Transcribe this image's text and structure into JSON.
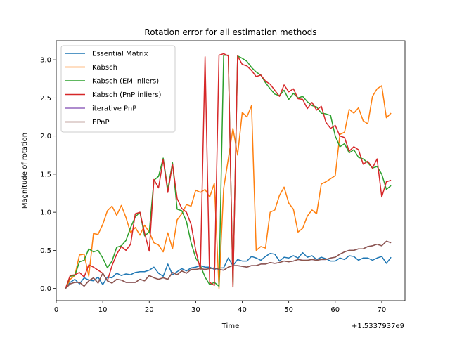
{
  "chart_data": {
    "type": "line",
    "title": "Rotation error for all estimation methods",
    "xlabel": "Time",
    "ylabel": "Magnitude of rotation",
    "x_offset_label": "+1.5337937e9",
    "xlim": [
      0,
      75
    ],
    "ylim": [
      -0.16,
      3.25
    ],
    "xticks": [
      0,
      10,
      20,
      30,
      40,
      50,
      60,
      70
    ],
    "yticks": [
      0.0,
      0.5,
      1.0,
      1.5,
      2.0,
      2.5,
      3.0
    ],
    "xtick_labels": [
      "0",
      "10",
      "20",
      "30",
      "40",
      "50",
      "60",
      "70"
    ],
    "ytick_labels": [
      "0.0",
      "0.5",
      "1.0",
      "1.5",
      "2.0",
      "2.5",
      "3.0"
    ],
    "grid": false,
    "legend_position": "top-left",
    "x": [
      2,
      3,
      4,
      5,
      6,
      7,
      8,
      9,
      10,
      11,
      12,
      13,
      14,
      15,
      16,
      17,
      18,
      19,
      20,
      21,
      22,
      23,
      24,
      25,
      26,
      27,
      28,
      29,
      30,
      31,
      32,
      33,
      34,
      35,
      36,
      37,
      38,
      39,
      40,
      41,
      42,
      43,
      44,
      45,
      46,
      47,
      48,
      49,
      50,
      51,
      52,
      53,
      54,
      55,
      56,
      57,
      58,
      59,
      60,
      61,
      62,
      63,
      64,
      65,
      66,
      67,
      68,
      69,
      70,
      71,
      72
    ],
    "series": [
      {
        "name": "Essential Matrix",
        "color": "#1f77b4",
        "values": [
          0.0,
          0.08,
          0.12,
          0.06,
          0.14,
          0.11,
          0.1,
          0.15,
          0.05,
          0.15,
          0.14,
          0.2,
          0.17,
          0.19,
          0.18,
          0.21,
          0.22,
          0.22,
          0.24,
          0.28,
          0.2,
          0.16,
          0.32,
          0.18,
          0.22,
          0.26,
          0.23,
          0.27,
          0.28,
          0.3,
          0.28,
          0.28,
          0.25,
          0.27,
          0.27,
          0.4,
          0.3,
          0.38,
          0.36,
          0.36,
          0.42,
          0.4,
          0.37,
          0.42,
          0.46,
          0.45,
          0.36,
          0.41,
          0.4,
          0.43,
          0.4,
          0.47,
          0.41,
          0.43,
          0.38,
          0.41,
          0.39,
          0.36,
          0.36,
          0.4,
          0.38,
          0.43,
          0.42,
          0.37,
          0.4,
          0.4,
          0.37,
          0.4,
          0.42,
          0.33,
          0.41
        ]
      },
      {
        "name": "Kabsch",
        "color": "#ff7f0e",
        "values": [
          0.0,
          0.12,
          0.17,
          0.44,
          0.45,
          0.16,
          0.72,
          0.71,
          0.84,
          1.02,
          1.08,
          0.96,
          1.09,
          0.93,
          0.73,
          0.8,
          0.7,
          0.83,
          0.74,
          0.6,
          0.57,
          0.48,
          0.73,
          0.52,
          0.9,
          0.98,
          1.1,
          1.08,
          1.29,
          1.26,
          1.3,
          1.2,
          1.38,
          0.0,
          1.31,
          1.7,
          2.1,
          1.75,
          2.31,
          2.25,
          2.4,
          0.5,
          0.55,
          0.53,
          1.0,
          1.03,
          1.22,
          1.33,
          1.12,
          1.04,
          0.74,
          0.79,
          0.95,
          1.03,
          0.98,
          1.37,
          1.4,
          1.44,
          1.48,
          2.02,
          2.05,
          2.35,
          2.3,
          2.37,
          2.2,
          2.16,
          2.52,
          2.62,
          2.66,
          2.24,
          2.3
        ]
      },
      {
        "name": "Kabsch (EM inliers)",
        "color": "#2ca02c",
        "values": [
          0.0,
          0.16,
          0.17,
          0.35,
          0.37,
          0.52,
          0.48,
          0.5,
          0.4,
          0.27,
          0.36,
          0.54,
          0.56,
          0.63,
          0.8,
          0.94,
          1.0,
          0.69,
          0.74,
          1.42,
          1.47,
          1.71,
          1.3,
          1.65,
          1.04,
          1.02,
          0.88,
          0.6,
          0.4,
          0.3,
          0.15,
          0.05,
          0.08,
          0.03,
          3.06,
          3.06,
          0.02,
          3.05,
          3.02,
          2.98,
          2.9,
          2.84,
          2.8,
          2.7,
          2.62,
          2.55,
          2.53,
          2.6,
          2.48,
          2.56,
          2.5,
          2.52,
          2.45,
          2.4,
          2.38,
          2.3,
          2.29,
          2.27,
          2.0,
          1.86,
          1.9,
          1.78,
          1.82,
          1.72,
          1.7,
          1.65,
          1.58,
          1.6,
          1.5,
          1.3,
          1.35
        ]
      },
      {
        "name": "Kabsch (PnP inliers)",
        "color": "#d62728",
        "values": [
          0.0,
          0.17,
          0.18,
          0.21,
          0.15,
          0.31,
          0.28,
          0.24,
          0.2,
          0.1,
          0.3,
          0.45,
          0.55,
          0.5,
          0.58,
          0.98,
          1.0,
          0.73,
          0.49,
          1.43,
          1.32,
          1.69,
          1.26,
          1.63,
          1.18,
          1.05,
          1.0,
          0.84,
          0.5,
          0.25,
          3.04,
          0.08,
          0.04,
          3.06,
          3.08,
          3.05,
          0.02,
          3.05,
          2.94,
          2.92,
          2.86,
          2.78,
          2.8,
          2.72,
          2.68,
          2.6,
          2.52,
          2.67,
          2.58,
          2.62,
          2.49,
          2.48,
          2.36,
          2.44,
          2.34,
          2.39,
          2.18,
          2.1,
          2.14,
          2.0,
          1.98,
          1.8,
          1.86,
          1.82,
          1.63,
          1.67,
          1.58,
          1.7,
          1.2,
          1.4,
          1.42
        ]
      },
      {
        "name": "iterative PnP",
        "color": "#9467bd",
        "values": [
          0.0,
          0.06,
          0.08,
          0.08,
          0.03,
          0.1,
          0.14,
          0.07,
          0.2,
          0.1,
          0.07,
          0.12,
          0.11,
          0.08,
          0.08,
          0.08,
          0.12,
          0.1,
          0.17,
          0.14,
          0.12,
          0.14,
          0.12,
          0.21,
          0.18,
          0.23,
          0.2,
          0.25,
          0.25,
          0.26,
          0.25,
          0.26,
          0.27,
          0.25,
          0.24,
          0.28,
          0.3,
          0.3,
          0.29,
          0.28,
          0.3,
          0.3,
          0.32,
          0.32,
          0.34,
          0.33,
          0.34,
          0.36,
          0.35,
          0.36,
          0.38,
          0.37,
          0.37,
          0.38,
          0.37,
          0.38,
          0.38,
          0.4,
          0.41,
          0.45,
          0.48,
          0.5,
          0.5,
          0.52,
          0.52,
          0.55,
          0.56,
          0.58,
          0.56,
          0.62,
          0.6
        ]
      },
      {
        "name": "EPnP",
        "color": "#8c564b",
        "values": [
          0.0,
          0.06,
          0.08,
          0.08,
          0.03,
          0.1,
          0.14,
          0.07,
          0.2,
          0.1,
          0.07,
          0.12,
          0.11,
          0.08,
          0.08,
          0.08,
          0.12,
          0.1,
          0.17,
          0.14,
          0.12,
          0.14,
          0.12,
          0.21,
          0.18,
          0.23,
          0.2,
          0.25,
          0.25,
          0.26,
          0.25,
          0.26,
          0.27,
          0.25,
          0.24,
          0.28,
          0.3,
          0.3,
          0.29,
          0.28,
          0.3,
          0.3,
          0.32,
          0.32,
          0.34,
          0.33,
          0.34,
          0.36,
          0.35,
          0.36,
          0.38,
          0.37,
          0.37,
          0.38,
          0.37,
          0.38,
          0.38,
          0.4,
          0.41,
          0.45,
          0.48,
          0.5,
          0.5,
          0.52,
          0.52,
          0.55,
          0.56,
          0.58,
          0.56,
          0.62,
          0.6
        ]
      }
    ]
  }
}
